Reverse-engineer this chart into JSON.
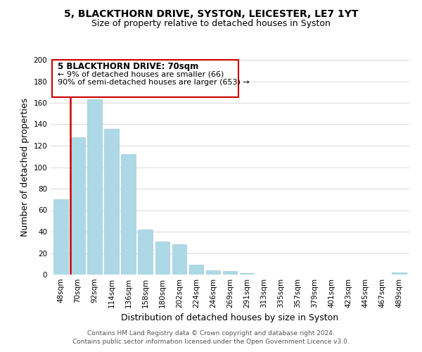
{
  "title": "5, BLACKTHORN DRIVE, SYSTON, LEICESTER, LE7 1YT",
  "subtitle": "Size of property relative to detached houses in Syston",
  "xlabel": "Distribution of detached houses by size in Syston",
  "ylabel": "Number of detached properties",
  "bar_labels": [
    "48sqm",
    "70sqm",
    "92sqm",
    "114sqm",
    "136sqm",
    "158sqm",
    "180sqm",
    "202sqm",
    "224sqm",
    "246sqm",
    "269sqm",
    "291sqm",
    "313sqm",
    "335sqm",
    "357sqm",
    "379sqm",
    "401sqm",
    "423sqm",
    "445sqm",
    "467sqm",
    "489sqm"
  ],
  "bar_values": [
    70,
    128,
    163,
    136,
    112,
    42,
    31,
    28,
    9,
    4,
    3,
    1,
    0,
    0,
    0,
    0,
    0,
    0,
    0,
    0,
    2
  ],
  "bar_color": "#add8e6",
  "bar_edge_color": "#a0c8e0",
  "highlight_bar_index": 1,
  "highlight_line_color": "#cc0000",
  "ylim": [
    0,
    200
  ],
  "yticks": [
    0,
    20,
    40,
    60,
    80,
    100,
    120,
    140,
    160,
    180,
    200
  ],
  "ann_line1": "5 BLACKTHORN DRIVE: 70sqm",
  "ann_line2": "← 9% of detached houses are smaller (66)",
  "ann_line3": "90% of semi-detached houses are larger (653) →",
  "footer_line1": "Contains HM Land Registry data © Crown copyright and database right 2024.",
  "footer_line2": "Contains public sector information licensed under the Open Government Licence v3.0.",
  "background_color": "#ffffff",
  "grid_color": "#d3d3d3",
  "title_fontsize": 10,
  "subtitle_fontsize": 9,
  "axis_label_fontsize": 9,
  "tick_fontsize": 7.5,
  "footer_fontsize": 6.5,
  "ann_fontsize1": 8.5,
  "ann_fontsize2": 8,
  "highlight_line_color_box": "#cc0000"
}
